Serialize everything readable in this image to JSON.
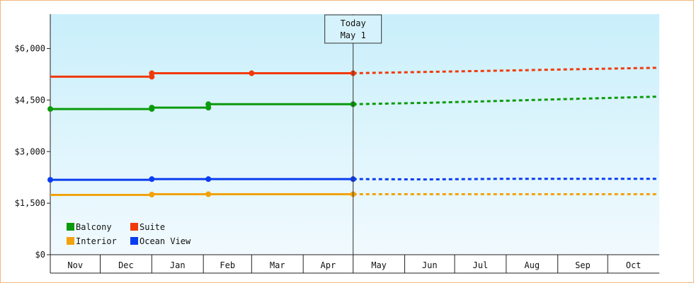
{
  "chart_data": {
    "type": "line",
    "title": "",
    "xlabel": "",
    "ylabel": "",
    "ylim": [
      0,
      7000
    ],
    "y_ticks": [
      "$0",
      "$1,500",
      "$3,000",
      "$4,500",
      "$6,000"
    ],
    "y_tick_values": [
      0,
      1500,
      3000,
      4500,
      6000
    ],
    "months": [
      "Nov",
      "Dec",
      "Jan",
      "Feb",
      "Mar",
      "Apr",
      "May",
      "Jun",
      "Jul",
      "Aug",
      "Sep",
      "Oct"
    ],
    "today_marker": {
      "line1": "Today",
      "line2": "May 1",
      "date": "2000-05-01"
    },
    "legend_position": "bottom-left",
    "colors": {
      "Balcony": "#0b9a0b",
      "Suite": "#f03a0a",
      "Interior": "#f2a20c",
      "Ocean View": "#0a3cf0",
      "background_top": "#c9effb",
      "background_bottom": "#f1fafe"
    },
    "series": [
      {
        "name": "Balcony",
        "history": [
          {
            "date": "1999-11-01",
            "value": 4240
          },
          {
            "date": "2000-01-01",
            "value": 4240
          },
          {
            "date": "2000-01-01",
            "value": 4280
          },
          {
            "date": "2000-02-04",
            "value": 4280
          },
          {
            "date": "2000-02-04",
            "value": 4380
          },
          {
            "date": "2000-05-01",
            "value": 4380
          }
        ],
        "points": [
          {
            "date": "1999-11-01",
            "value": 4240
          },
          {
            "date": "2000-01-01",
            "value": 4240
          },
          {
            "date": "2000-01-01",
            "value": 4280
          },
          {
            "date": "2000-02-04",
            "value": 4280
          },
          {
            "date": "2000-02-04",
            "value": 4380
          },
          {
            "date": "2000-05-01",
            "value": 4380
          }
        ],
        "forecast": [
          {
            "date": "2000-05-01",
            "value": 4380
          },
          {
            "date": "2000-06-15",
            "value": 4420
          },
          {
            "date": "2000-08-01",
            "value": 4480
          },
          {
            "date": "2000-09-15",
            "value": 4540
          },
          {
            "date": "2000-10-31",
            "value": 4600
          }
        ]
      },
      {
        "name": "Suite",
        "history": [
          {
            "date": "1999-11-01",
            "value": 5180
          },
          {
            "date": "2000-01-01",
            "value": 5180
          },
          {
            "date": "2000-01-01",
            "value": 5280
          },
          {
            "date": "2000-03-01",
            "value": 5280
          },
          {
            "date": "2000-05-01",
            "value": 5280
          }
        ],
        "points": [
          {
            "date": "2000-01-01",
            "value": 5180
          },
          {
            "date": "2000-01-01",
            "value": 5280
          },
          {
            "date": "2000-03-01",
            "value": 5280
          },
          {
            "date": "2000-05-01",
            "value": 5280
          }
        ],
        "forecast": [
          {
            "date": "2000-05-01",
            "value": 5280
          },
          {
            "date": "2000-06-15",
            "value": 5320
          },
          {
            "date": "2000-08-01",
            "value": 5360
          },
          {
            "date": "2000-09-15",
            "value": 5400
          },
          {
            "date": "2000-10-31",
            "value": 5440
          }
        ]
      },
      {
        "name": "Interior",
        "history": [
          {
            "date": "1999-11-01",
            "value": 1740
          },
          {
            "date": "2000-01-01",
            "value": 1740
          },
          {
            "date": "2000-01-01",
            "value": 1760
          },
          {
            "date": "2000-02-04",
            "value": 1760
          },
          {
            "date": "2000-05-01",
            "value": 1760
          }
        ],
        "points": [
          {
            "date": "2000-01-01",
            "value": 1750
          },
          {
            "date": "2000-02-04",
            "value": 1760
          },
          {
            "date": "2000-05-01",
            "value": 1760
          }
        ],
        "forecast": [
          {
            "date": "2000-05-01",
            "value": 1760
          },
          {
            "date": "2000-10-31",
            "value": 1760
          }
        ]
      },
      {
        "name": "Ocean View",
        "history": [
          {
            "date": "1999-11-01",
            "value": 2180
          },
          {
            "date": "2000-01-01",
            "value": 2180
          },
          {
            "date": "2000-01-01",
            "value": 2200
          },
          {
            "date": "2000-05-01",
            "value": 2200
          }
        ],
        "points": [
          {
            "date": "1999-11-01",
            "value": 2180
          },
          {
            "date": "2000-01-01",
            "value": 2200
          },
          {
            "date": "2000-02-04",
            "value": 2200
          },
          {
            "date": "2000-05-01",
            "value": 2200
          }
        ],
        "forecast": [
          {
            "date": "2000-05-01",
            "value": 2200
          },
          {
            "date": "2000-06-15",
            "value": 2190
          },
          {
            "date": "2000-08-01",
            "value": 2210
          },
          {
            "date": "2000-10-31",
            "value": 2210
          }
        ]
      }
    ]
  }
}
